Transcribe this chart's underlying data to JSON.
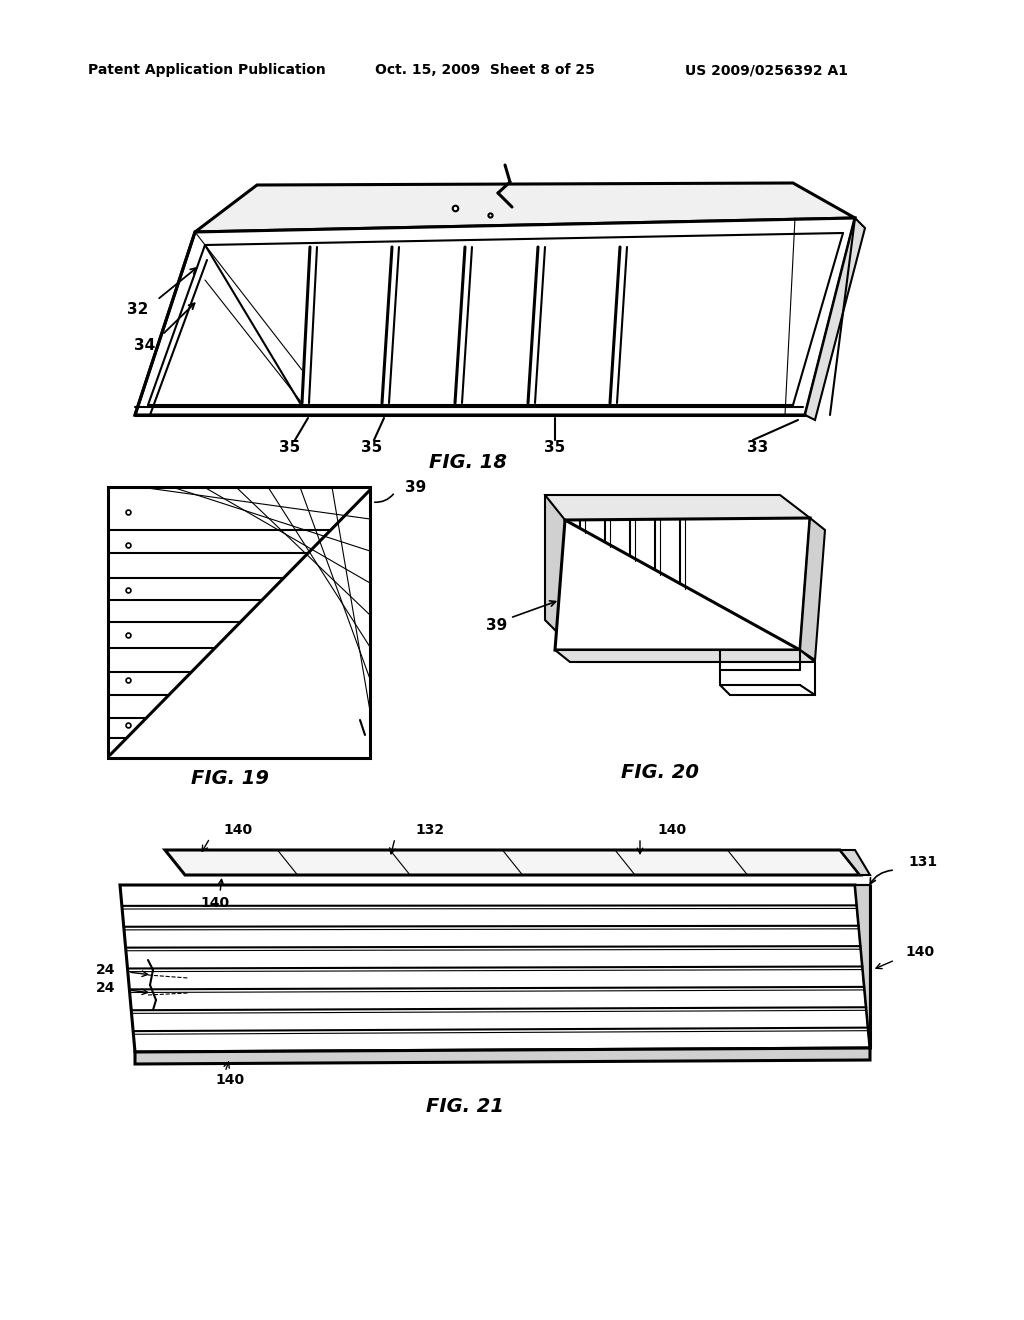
{
  "bg_color": "#ffffff",
  "header_text": "Patent Application Publication",
  "header_date": "Oct. 15, 2009  Sheet 8 of 25",
  "header_patent": "US 2009/0256392 A1",
  "fig18_label": "FIG. 18",
  "fig19_label": "FIG. 19",
  "fig20_label": "FIG. 20",
  "fig21_label": "FIG. 21",
  "text_color": "#000000",
  "line_color": "#000000",
  "lw_thin": 0.8,
  "lw_med": 1.5,
  "lw_thick": 2.2
}
